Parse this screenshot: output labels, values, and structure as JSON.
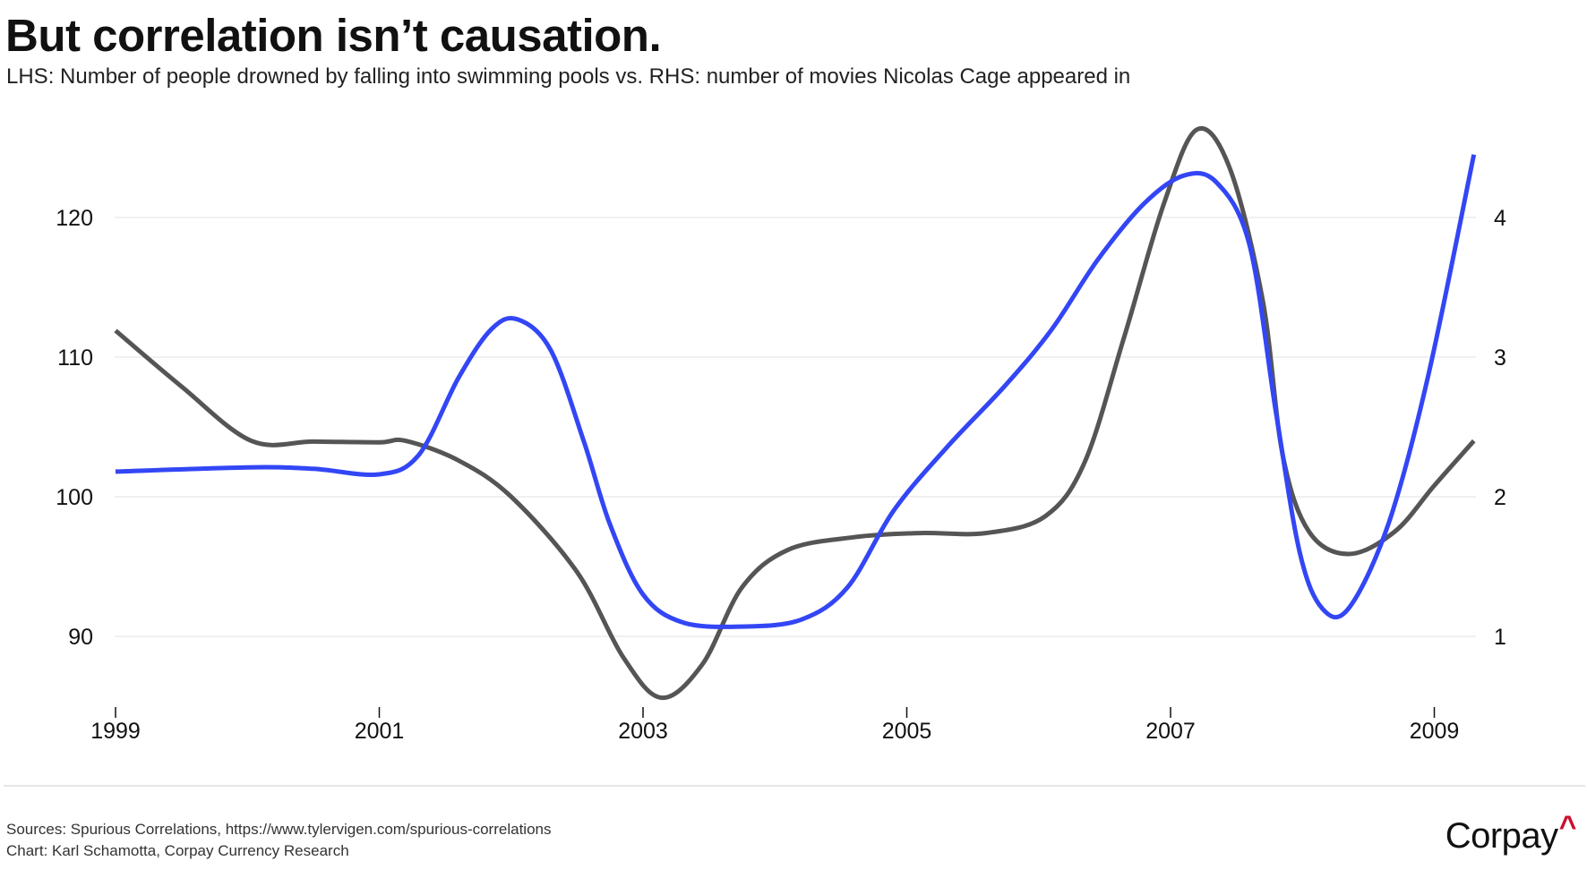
{
  "header": {
    "title": "But correlation isn’t causation.",
    "subtitle": "LHS: Number of people drowned by falling into swimming pools vs. RHS: number of movies Nicolas Cage appeared in"
  },
  "footer": {
    "sources": "Sources: Spurious Correlations, https://www.tylervigen.com/spurious-correlations",
    "credit": "Chart: Karl Schamotta, Corpay Currency Research",
    "logo_text": "Corpay",
    "logo_mark": "^"
  },
  "colors": {
    "lhs_series": "#555555",
    "rhs_series": "#3346f5",
    "gridline": "#ececec",
    "logo_accent": "#c8102e"
  },
  "chart_data": {
    "type": "line",
    "title": "But correlation isn’t causation.",
    "subtitle": "LHS: Number of people drowned by falling into swimming pools vs. RHS: number of movies Nicolas Cage appeared in",
    "xlabel": "",
    "ylabel_left": "",
    "ylabel_right": "",
    "x_ticks": [
      "1999",
      "2001",
      "2003",
      "2005",
      "2007",
      "2009"
    ],
    "x_range": [
      1999,
      2009.3
    ],
    "y_left": {
      "range": [
        84,
        127
      ],
      "ticks": [
        90,
        100,
        110,
        120
      ]
    },
    "y_right": {
      "range": [
        0.6,
        4.9
      ],
      "ticks": [
        1,
        2,
        3,
        4
      ]
    },
    "grid": true,
    "legend": "none",
    "series": [
      {
        "name": "Number of people drowned by falling into swimming pools",
        "axis": "left",
        "points": [
          [
            1999.0,
            111.9
          ],
          [
            1999.5,
            107.9
          ],
          [
            2000.03,
            104.0
          ],
          [
            2000.5,
            103.95
          ],
          [
            2001.0,
            103.9
          ],
          [
            2001.2,
            104.0
          ],
          [
            2001.6,
            102.6
          ],
          [
            2002.0,
            100.0
          ],
          [
            2002.5,
            94.6
          ],
          [
            2002.85,
            88.5
          ],
          [
            2003.14,
            85.6
          ],
          [
            2003.45,
            88.0
          ],
          [
            2003.75,
            93.5
          ],
          [
            2004.1,
            96.2
          ],
          [
            2004.6,
            97.1
          ],
          [
            2005.1,
            97.4
          ],
          [
            2005.6,
            97.4
          ],
          [
            2006.05,
            98.6
          ],
          [
            2006.35,
            102.5
          ],
          [
            2006.65,
            111.5
          ],
          [
            2006.95,
            121.0
          ],
          [
            2007.2,
            126.3
          ],
          [
            2007.45,
            123.5
          ],
          [
            2007.7,
            114.0
          ],
          [
            2007.85,
            103.0
          ],
          [
            2008.05,
            97.5
          ],
          [
            2008.35,
            95.9
          ],
          [
            2008.7,
            97.5
          ],
          [
            2009.0,
            100.8
          ],
          [
            2009.3,
            104.0
          ]
        ]
      },
      {
        "name": "Number of movies Nicolas Cage appeared in",
        "axis": "right",
        "points": [
          [
            1999.0,
            2.18
          ],
          [
            2000.0,
            2.21
          ],
          [
            2000.5,
            2.2
          ],
          [
            2001.0,
            2.16
          ],
          [
            2001.3,
            2.3
          ],
          [
            2001.6,
            2.85
          ],
          [
            2001.85,
            3.2
          ],
          [
            2002.05,
            3.27
          ],
          [
            2002.3,
            3.05
          ],
          [
            2002.55,
            2.4
          ],
          [
            2002.75,
            1.8
          ],
          [
            2003.0,
            1.3
          ],
          [
            2003.3,
            1.1
          ],
          [
            2003.75,
            1.07
          ],
          [
            2004.2,
            1.12
          ],
          [
            2004.55,
            1.35
          ],
          [
            2004.9,
            1.9
          ],
          [
            2005.3,
            2.35
          ],
          [
            2005.75,
            2.8
          ],
          [
            2006.1,
            3.2
          ],
          [
            2006.45,
            3.7
          ],
          [
            2006.8,
            4.1
          ],
          [
            2007.1,
            4.3
          ],
          [
            2007.35,
            4.25
          ],
          [
            2007.6,
            3.8
          ],
          [
            2007.8,
            2.6
          ],
          [
            2007.98,
            1.6
          ],
          [
            2008.15,
            1.2
          ],
          [
            2008.35,
            1.2
          ],
          [
            2008.65,
            1.8
          ],
          [
            2008.95,
            2.85
          ],
          [
            2009.3,
            4.45
          ]
        ]
      }
    ]
  }
}
